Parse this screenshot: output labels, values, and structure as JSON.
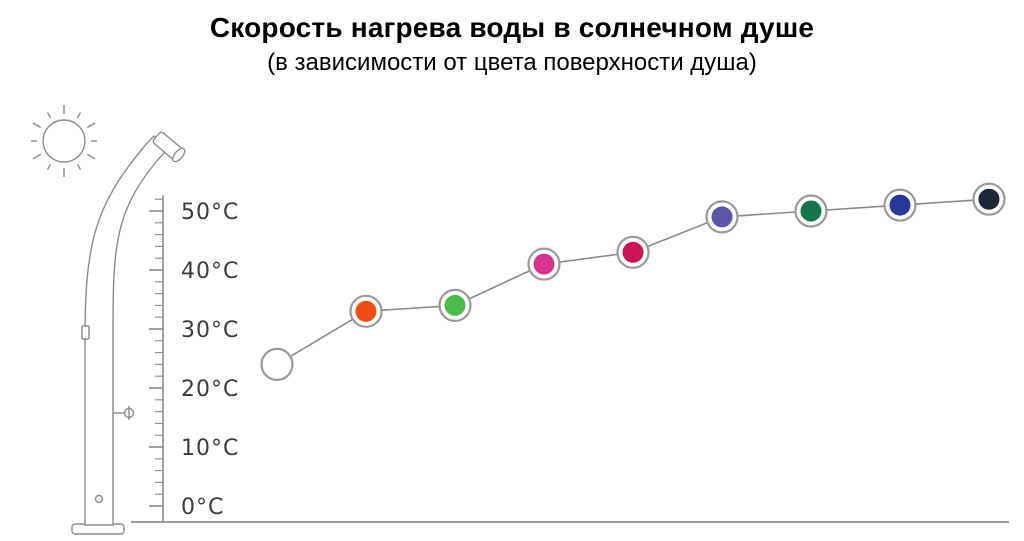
{
  "header": {
    "title": "Скорость нагрева воды в солнечном душе",
    "subtitle": "(в зависимости от цвета поверхности душа)"
  },
  "colors": {
    "outline": "#8c8c8c",
    "marker_ring": "#9a9a9a",
    "series_line": "#8b8b8b",
    "baseline": "#9a9a9a",
    "tick_label": "#3c3c3c"
  },
  "chart_data": {
    "type": "line",
    "title": "Скорость нагрева воды в солнечном душе",
    "subtitle": "(в зависимости от цвета поверхности душа)",
    "xlabel": "",
    "ylabel": "",
    "ylim": [
      0,
      55
    ],
    "grid": false,
    "legend": "none",
    "y_ticks": [
      {
        "label": "0°C",
        "value": 0
      },
      {
        "label": "10°C",
        "value": 10
      },
      {
        "label": "20°C",
        "value": 20
      },
      {
        "label": "30°C",
        "value": 30
      },
      {
        "label": "40°C",
        "value": 40
      },
      {
        "label": "50°C",
        "value": 50
      }
    ],
    "points": [
      {
        "surface_color": "white",
        "hex": "#ffffff",
        "temp_c": 24
      },
      {
        "surface_color": "orange",
        "hex": "#f04a16",
        "temp_c": 33
      },
      {
        "surface_color": "green",
        "hex": "#4bbb49",
        "temp_c": 34
      },
      {
        "surface_color": "magenta",
        "hex": "#d9368f",
        "temp_c": 41
      },
      {
        "surface_color": "crimson",
        "hex": "#ce1257",
        "temp_c": 43
      },
      {
        "surface_color": "violet",
        "hex": "#5b55a5",
        "temp_c": 49
      },
      {
        "surface_color": "dark-green",
        "hex": "#15754b",
        "temp_c": 50
      },
      {
        "surface_color": "dark-blue",
        "hex": "#27399b",
        "temp_c": 51
      },
      {
        "surface_color": "black",
        "hex": "#1c2837",
        "temp_c": 52
      }
    ]
  }
}
